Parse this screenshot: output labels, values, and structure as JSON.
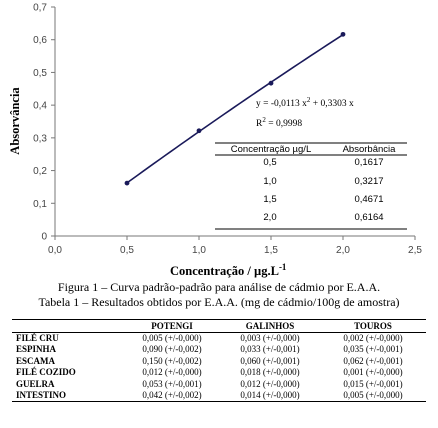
{
  "chart_data": {
    "type": "scatter",
    "xlabel": "Concentração / µg.L",
    "xlabel_exp": "-1",
    "ylabel": "Absorvância",
    "xlim": [
      0,
      2.5
    ],
    "ylim": [
      0,
      0.7
    ],
    "xticks": [
      "0,0",
      "0,5",
      "1,0",
      "1,5",
      "2,0",
      "2,5"
    ],
    "yticks": [
      "0",
      "0,1",
      "0,2",
      "0,3",
      "0,4",
      "0,5",
      "0,6",
      "0,7"
    ],
    "grid": false,
    "points": [
      {
        "x": 0.5,
        "y": 0.1617
      },
      {
        "x": 1.0,
        "y": 0.3217
      },
      {
        "x": 1.5,
        "y": 0.4671
      },
      {
        "x": 2.0,
        "y": 0.6164
      }
    ],
    "fit": {
      "a": -0.0113,
      "b": 0.3303,
      "equation_text": "y = -0,0113 x",
      "equation_tail": " + 0,3303 x",
      "r2_text": "R",
      "r2_value": " = 0,9998"
    },
    "inset_table": {
      "headers": [
        "Concentração µg/L",
        "Absorbância"
      ],
      "rows": [
        [
          "0,5",
          "0,1617"
        ],
        [
          "1,0",
          "0,3217"
        ],
        [
          "1,5",
          "0,4671"
        ],
        [
          "2,0",
          "0,6164"
        ]
      ]
    }
  },
  "figure_caption": "Figura 1 – Curva padrão-padrão para análise de cádmio por E.A.A.",
  "table_caption": "Tabela 1 – Resultados obtidos por E.A.A. (mg de cádmio/100g de amostra)",
  "results_table": {
    "headers": [
      "",
      "POTENGI",
      "GALINHOS",
      "TOUROS"
    ],
    "rows": [
      [
        "FILÉ CRU",
        "0,005 (+/-0,000)",
        "0,003 (+/-0,000)",
        "0,002 (+/-0,000)"
      ],
      [
        "ESPINHA",
        "0,090 (+/-0,002)",
        "0,033 (+/-0,001)",
        "0,035 (+/-0,001)"
      ],
      [
        "ESCAMA",
        "0,150 (+/-0,002)",
        "0,060 (+/-0,001)",
        "0,062 (+/-0,001)"
      ],
      [
        "FILÉ COZIDO",
        "0,012 (+/-0,000)",
        "0,018 (+/-0,000)",
        "0,001 (+/-0,000)"
      ],
      [
        "GUELRA",
        "0,053 (+/-0,001)",
        "0,012 (+/-0,000)",
        "0,015 (+/-0,001)"
      ],
      [
        "INTESTINO",
        "0,042 (+/-0,002)",
        "0,014 (+/-0,000)",
        "0,005 (+/-0,000)"
      ]
    ]
  }
}
